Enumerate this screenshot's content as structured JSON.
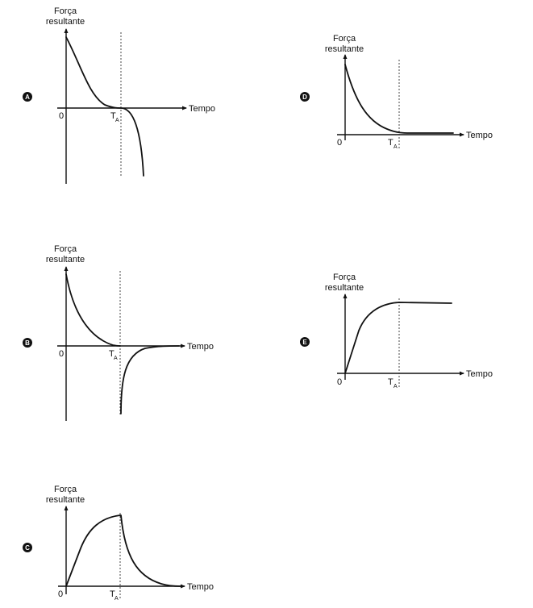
{
  "panels": [
    {
      "id": "A",
      "badge": "A",
      "ylabel_line1": "Força",
      "ylabel_line2": "resultante",
      "xlabel": "Tempo",
      "origin_label": "0",
      "marker_label": "T",
      "marker_sub": "A"
    },
    {
      "id": "B",
      "badge": "B",
      "ylabel_line1": "Força",
      "ylabel_line2": "resultante",
      "xlabel": "Tempo",
      "origin_label": "0",
      "marker_label": "T",
      "marker_sub": "A"
    },
    {
      "id": "C",
      "badge": "C",
      "ylabel_line1": "Força",
      "ylabel_line2": "resultante",
      "xlabel": "Tempo",
      "origin_label": "0",
      "marker_label": "T",
      "marker_sub": "A"
    },
    {
      "id": "D",
      "badge": "D",
      "ylabel_line1": "Força",
      "ylabel_line2": "resultante",
      "xlabel": "Tempo",
      "origin_label": "0",
      "marker_label": "T",
      "marker_sub": "A"
    },
    {
      "id": "E",
      "badge": "E",
      "ylabel_line1": "Força",
      "ylabel_line2": "resultante",
      "xlabel": "Tempo",
      "origin_label": "0",
      "marker_label": "T",
      "marker_sub": "A"
    }
  ]
}
